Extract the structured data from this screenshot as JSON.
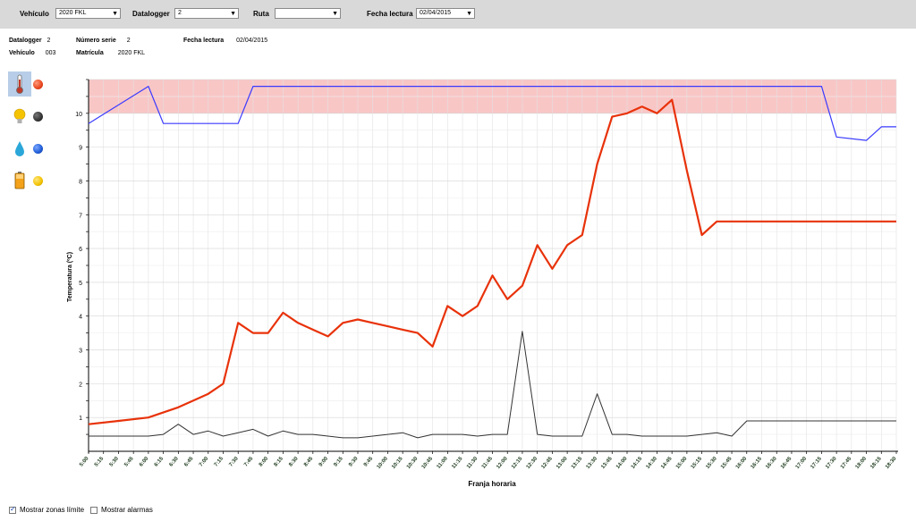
{
  "filters": {
    "vehiculo_label": "Vehículo",
    "vehiculo_value": "2020 FKL",
    "datalogger_label": "Datalogger",
    "datalogger_value": "2",
    "ruta_label": "Ruta",
    "ruta_value": "",
    "fecha_label": "Fecha lectura",
    "fecha_value": "02/04/2015"
  },
  "info": {
    "datalogger_label": "Datalogger",
    "datalogger_value": "2",
    "numero_serie_label": "Número serie",
    "numero_serie_value": "2",
    "fecha_label": "Fecha lectura",
    "fecha_value": "02/04/2015",
    "vehiculo_label": "Vehículo",
    "vehiculo_value": "003",
    "matricula_label": "Matrícula",
    "matricula_value": "2020 FKL"
  },
  "sidebar": [
    {
      "icon": "thermometer-icon",
      "dot_color": "#e8451e",
      "selected": true
    },
    {
      "icon": "lightbulb-icon",
      "dot_color": "#333333",
      "selected": false
    },
    {
      "icon": "water-drop-icon",
      "dot_color": "#1f5bd6",
      "selected": false
    },
    {
      "icon": "battery-icon",
      "dot_color": "#f2c200",
      "selected": false
    }
  ],
  "footer": {
    "zonas_label": "Mostrar zonas límite",
    "zonas_checked": true,
    "alarmas_label": "Mostrar alarmas",
    "alarmas_checked": false
  },
  "colors": {
    "temperature": "#e8320a",
    "limit": "#3a3aff",
    "secondary": "#333333",
    "zone": "#f9c6c6"
  },
  "chart_data": {
    "type": "line",
    "xlabel": "Franja horaria",
    "ylabel": "Temperatura (ºC)",
    "ylim": [
      0,
      11
    ],
    "yticks": [
      1,
      2,
      3,
      4,
      5,
      6,
      7,
      8,
      9,
      10
    ],
    "limit_zone": [
      10,
      11
    ],
    "grid": true,
    "categories": [
      "5:00",
      "5:15",
      "5:30",
      "5:45",
      "6:00",
      "6:15",
      "6:30",
      "6:45",
      "7:00",
      "7:15",
      "7:30",
      "7:45",
      "8:00",
      "8:15",
      "8:30",
      "8:45",
      "9:00",
      "9:15",
      "9:30",
      "9:45",
      "10:00",
      "10:15",
      "10:30",
      "10:45",
      "11:00",
      "11:15",
      "11:30",
      "11:45",
      "12:00",
      "12:15",
      "12:30",
      "12:45",
      "13:00",
      "13:15",
      "13:30",
      "13:45",
      "14:00",
      "14:15",
      "14:30",
      "14:45",
      "15:00",
      "15:15",
      "15:30",
      "15:45",
      "16:00",
      "16:15",
      "16:30",
      "16:45",
      "17:00",
      "17:15",
      "17:30",
      "17:45",
      "18:00",
      "18:15",
      "18:30"
    ],
    "series": [
      {
        "key": "temperature",
        "x": [
          0,
          2,
          4,
          6,
          7,
          8,
          9,
          10,
          11,
          12,
          13,
          14,
          15,
          16,
          17,
          18,
          19,
          20,
          21,
          22,
          23,
          24,
          25,
          26,
          27,
          28,
          29,
          30,
          31,
          32,
          33,
          34,
          35,
          36,
          37,
          38,
          39,
          40,
          41,
          42,
          43,
          44,
          45,
          46,
          47,
          48,
          49,
          50,
          51,
          52,
          53,
          54
        ],
        "values": [
          0.8,
          0.9,
          1.0,
          1.3,
          1.5,
          1.7,
          2.0,
          3.8,
          3.5,
          3.5,
          4.1,
          3.8,
          3.6,
          3.4,
          3.8,
          3.9,
          3.8,
          3.7,
          3.6,
          3.5,
          3.1,
          4.3,
          4.0,
          4.3,
          5.2,
          4.5,
          4.9,
          6.1,
          5.4,
          6.1,
          6.4,
          8.5,
          9.9,
          10.0,
          10.2,
          10.0,
          10.4,
          8.3,
          6.4,
          6.8,
          6.8,
          6.8,
          6.8,
          6.8,
          6.8,
          6.8,
          6.8,
          6.8,
          6.8,
          6.8,
          6.8,
          6.8
        ]
      },
      {
        "key": "limit",
        "x": [
          0,
          4,
          5,
          10,
          11,
          49,
          50,
          52,
          53,
          54
        ],
        "values": [
          9.7,
          10.8,
          9.7,
          9.7,
          10.8,
          10.8,
          9.3,
          9.2,
          9.6,
          9.6
        ]
      },
      {
        "key": "secondary",
        "x": [
          0,
          4,
          5,
          6,
          7,
          8,
          9,
          10,
          11,
          12,
          13,
          14,
          15,
          16,
          17,
          18,
          19,
          20,
          21,
          22,
          23,
          24,
          25,
          26,
          27,
          28,
          29,
          30,
          31,
          32,
          33,
          34,
          35,
          36,
          37,
          38,
          39,
          40,
          41,
          42,
          43,
          44,
          45,
          46,
          47,
          48,
          49,
          50,
          51,
          52,
          53,
          54
        ],
        "values": [
          0.45,
          0.45,
          0.5,
          0.8,
          0.5,
          0.6,
          0.45,
          0.55,
          0.65,
          0.45,
          0.6,
          0.5,
          0.5,
          0.45,
          0.4,
          0.4,
          0.45,
          0.5,
          0.55,
          0.4,
          0.5,
          0.5,
          0.5,
          0.45,
          0.5,
          0.5,
          3.55,
          0.5,
          0.45,
          0.45,
          0.45,
          1.7,
          0.5,
          0.5,
          0.45,
          0.45,
          0.45,
          0.45,
          0.5,
          0.55,
          0.45,
          0.9,
          0.9,
          0.9,
          0.9,
          0.9,
          0.9,
          0.9,
          0.9,
          0.9,
          0.9,
          0.9
        ]
      }
    ]
  }
}
